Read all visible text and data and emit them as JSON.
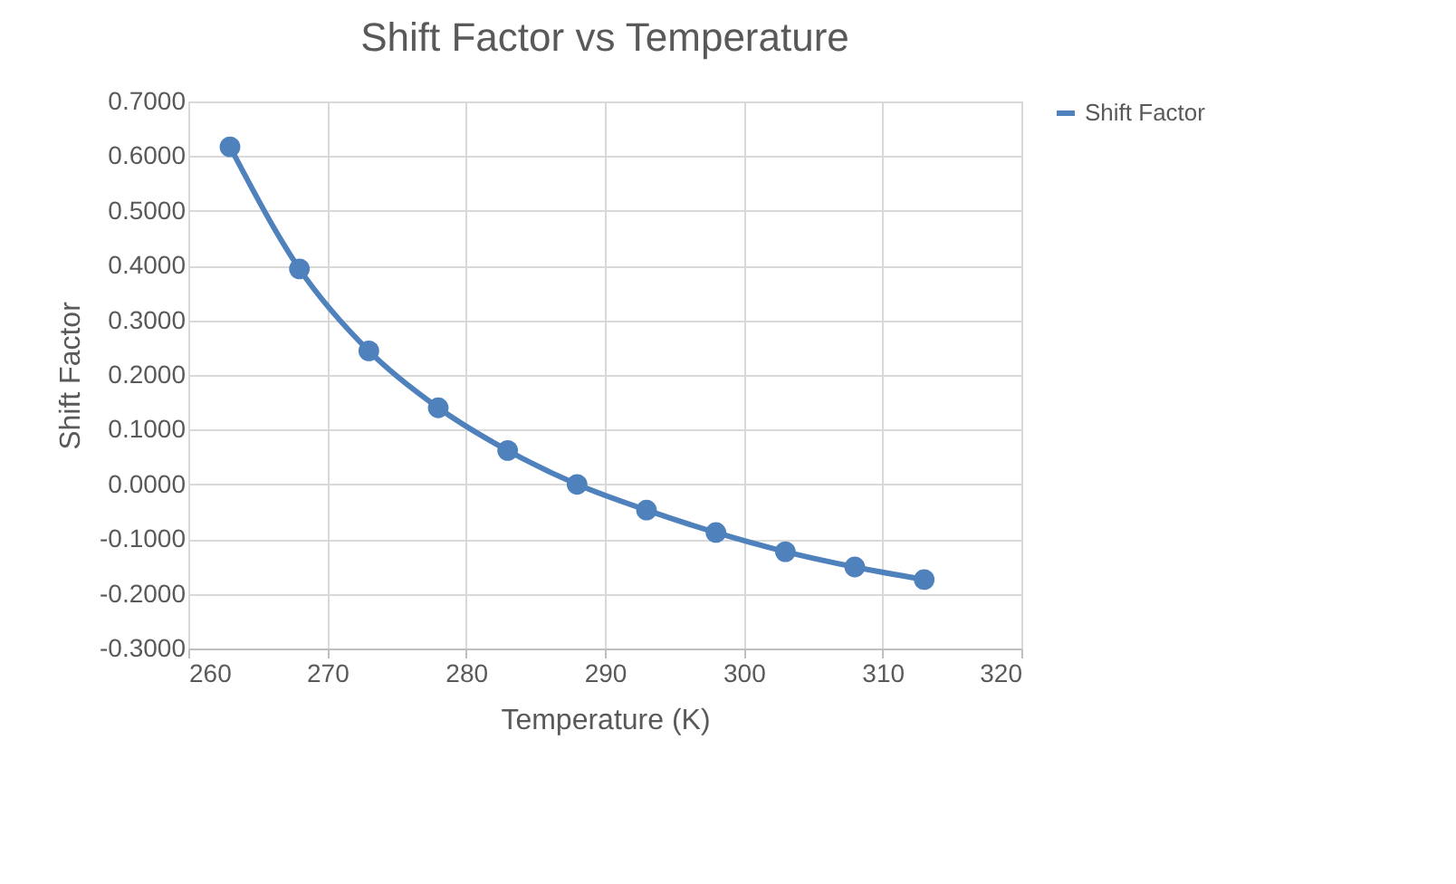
{
  "chart_data": {
    "type": "line",
    "title": "Shift Factor vs Temperature",
    "xlabel": "Temperature (K)",
    "ylabel": "Shift Factor",
    "x": [
      263,
      268,
      273,
      278,
      283,
      288,
      293,
      298,
      303,
      308,
      313
    ],
    "series": [
      {
        "name": "Shift Factor",
        "color": "#4f81bd",
        "values": [
          0.617,
          0.394,
          0.244,
          0.14,
          0.062,
          0.0,
          -0.047,
          -0.088,
          -0.123,
          -0.151,
          -0.174
        ]
      }
    ],
    "xlim": [
      260,
      320
    ],
    "xticks": [
      260,
      270,
      280,
      290,
      300,
      310,
      320
    ],
    "ylim": [
      -0.3,
      0.7
    ],
    "yticks": [
      {
        "value": -0.3,
        "label": "-0.3000"
      },
      {
        "value": -0.2,
        "label": "-0.2000"
      },
      {
        "value": -0.1,
        "label": "-0.1000"
      },
      {
        "value": 0,
        "label": "0.0000"
      },
      {
        "value": 0.1,
        "label": "0.1000"
      },
      {
        "value": 0.2,
        "label": "0.2000"
      },
      {
        "value": 0.3,
        "label": "0.3000"
      },
      {
        "value": 0.4,
        "label": "0.4000"
      },
      {
        "value": 0.5,
        "label": "0.5000"
      },
      {
        "value": 0.6,
        "label": "0.6000"
      },
      {
        "value": 0.7,
        "label": "0.7000"
      }
    ],
    "grid": true,
    "legend": "right",
    "marker": "circle",
    "line_style": "solid"
  }
}
